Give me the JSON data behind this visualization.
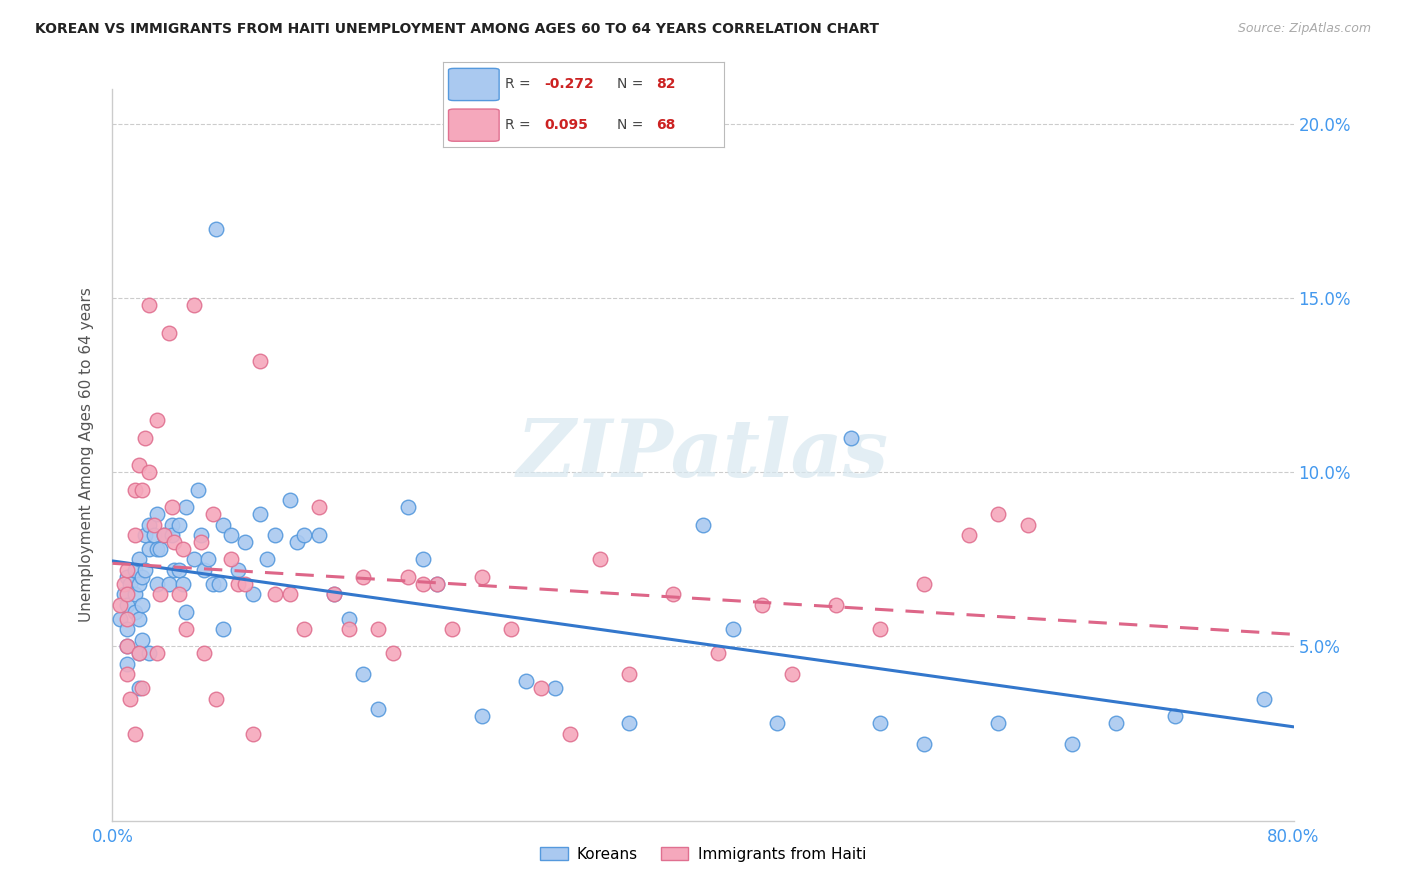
{
  "title": "KOREAN VS IMMIGRANTS FROM HAITI UNEMPLOYMENT AMONG AGES 60 TO 64 YEARS CORRELATION CHART",
  "source": "Source: ZipAtlas.com",
  "ylabel": "Unemployment Among Ages 60 to 64 years",
  "xlim": [
    0.0,
    0.8
  ],
  "ylim": [
    0.0,
    0.21
  ],
  "xticks": [
    0.0,
    0.1,
    0.2,
    0.3,
    0.4,
    0.5,
    0.6,
    0.7,
    0.8
  ],
  "xticklabels": [
    "0.0%",
    "",
    "",
    "",
    "",
    "",
    "",
    "",
    "80.0%"
  ],
  "yticks": [
    0.05,
    0.1,
    0.15,
    0.2
  ],
  "yticklabels": [
    "5.0%",
    "10.0%",
    "15.0%",
    "20.0%"
  ],
  "koreans_R": -0.272,
  "koreans_N": 82,
  "haiti_R": 0.095,
  "haiti_N": 68,
  "korean_color": "#aac9f0",
  "haiti_color": "#f5a8bc",
  "korean_edge_color": "#5599dd",
  "haiti_edge_color": "#e07090",
  "korean_line_color": "#3377cc",
  "haiti_line_color": "#dd6688",
  "watermark": "ZIPatlas",
  "background_color": "#ffffff",
  "korean_x": [
    0.005,
    0.008,
    0.01,
    0.01,
    0.01,
    0.01,
    0.01,
    0.012,
    0.015,
    0.015,
    0.015,
    0.018,
    0.018,
    0.018,
    0.018,
    0.018,
    0.02,
    0.02,
    0.02,
    0.022,
    0.022,
    0.025,
    0.025,
    0.025,
    0.028,
    0.03,
    0.03,
    0.03,
    0.032,
    0.035,
    0.038,
    0.04,
    0.04,
    0.042,
    0.045,
    0.045,
    0.048,
    0.05,
    0.05,
    0.055,
    0.058,
    0.06,
    0.062,
    0.065,
    0.068,
    0.07,
    0.072,
    0.075,
    0.075,
    0.08,
    0.085,
    0.09,
    0.095,
    0.1,
    0.105,
    0.11,
    0.12,
    0.125,
    0.13,
    0.14,
    0.15,
    0.16,
    0.17,
    0.18,
    0.2,
    0.21,
    0.22,
    0.25,
    0.28,
    0.3,
    0.35,
    0.4,
    0.42,
    0.45,
    0.5,
    0.52,
    0.55,
    0.6,
    0.65,
    0.68,
    0.72,
    0.78
  ],
  "korean_y": [
    0.058,
    0.065,
    0.07,
    0.062,
    0.055,
    0.05,
    0.045,
    0.068,
    0.072,
    0.065,
    0.06,
    0.075,
    0.068,
    0.058,
    0.048,
    0.038,
    0.07,
    0.062,
    0.052,
    0.082,
    0.072,
    0.085,
    0.078,
    0.048,
    0.082,
    0.088,
    0.078,
    0.068,
    0.078,
    0.082,
    0.068,
    0.085,
    0.082,
    0.072,
    0.085,
    0.072,
    0.068,
    0.09,
    0.06,
    0.075,
    0.095,
    0.082,
    0.072,
    0.075,
    0.068,
    0.17,
    0.068,
    0.085,
    0.055,
    0.082,
    0.072,
    0.08,
    0.065,
    0.088,
    0.075,
    0.082,
    0.092,
    0.08,
    0.082,
    0.082,
    0.065,
    0.058,
    0.042,
    0.032,
    0.09,
    0.075,
    0.068,
    0.03,
    0.04,
    0.038,
    0.028,
    0.085,
    0.055,
    0.028,
    0.11,
    0.028,
    0.022,
    0.028,
    0.022,
    0.028,
    0.03,
    0.035
  ],
  "haiti_x": [
    0.005,
    0.008,
    0.01,
    0.01,
    0.01,
    0.01,
    0.01,
    0.012,
    0.015,
    0.015,
    0.015,
    0.018,
    0.018,
    0.02,
    0.02,
    0.022,
    0.025,
    0.025,
    0.028,
    0.03,
    0.03,
    0.032,
    0.035,
    0.038,
    0.04,
    0.042,
    0.045,
    0.048,
    0.05,
    0.055,
    0.06,
    0.062,
    0.068,
    0.07,
    0.08,
    0.085,
    0.09,
    0.095,
    0.1,
    0.11,
    0.12,
    0.13,
    0.14,
    0.15,
    0.16,
    0.17,
    0.18,
    0.19,
    0.2,
    0.21,
    0.22,
    0.23,
    0.25,
    0.27,
    0.29,
    0.31,
    0.33,
    0.35,
    0.38,
    0.41,
    0.44,
    0.46,
    0.49,
    0.52,
    0.55,
    0.58,
    0.6,
    0.62
  ],
  "haiti_y": [
    0.062,
    0.068,
    0.072,
    0.065,
    0.058,
    0.05,
    0.042,
    0.035,
    0.095,
    0.082,
    0.025,
    0.102,
    0.048,
    0.095,
    0.038,
    0.11,
    0.148,
    0.1,
    0.085,
    0.115,
    0.048,
    0.065,
    0.082,
    0.14,
    0.09,
    0.08,
    0.065,
    0.078,
    0.055,
    0.148,
    0.08,
    0.048,
    0.088,
    0.035,
    0.075,
    0.068,
    0.068,
    0.025,
    0.132,
    0.065,
    0.065,
    0.055,
    0.09,
    0.065,
    0.055,
    0.07,
    0.055,
    0.048,
    0.07,
    0.068,
    0.068,
    0.055,
    0.07,
    0.055,
    0.038,
    0.025,
    0.075,
    0.042,
    0.065,
    0.048,
    0.062,
    0.042,
    0.062,
    0.055,
    0.068,
    0.082,
    0.088,
    0.085
  ]
}
